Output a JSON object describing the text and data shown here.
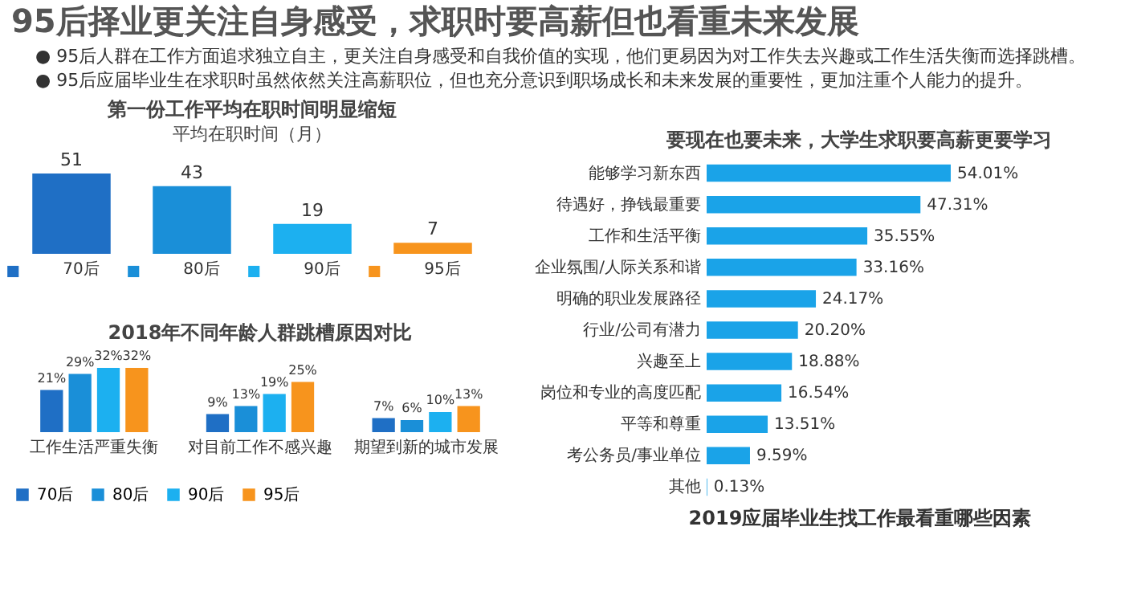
{
  "chart_data": [
    {
      "type": "other",
      "title": "95后择业更关注自身感受，求职时要高薪但也看重未来发展",
      "annotations": [
        "● 95后人群在工作方面追求独立自主，更关注自身感受和自我价值的实现，他们更易因为对工作失去兴趣或工作生活失衡而选择跳槽。",
        "● 95后应届毕业生在求职时虽然依然关注高薪职位，但也充分意识到职场成长和未来发展的重要性，更加注重个人能力的提升。"
      ]
    },
    {
      "type": "bar",
      "title": "第一份工作平均在职时间明显缩短",
      "subtitle": "平均在职时间（月）",
      "categories": [
        "70后",
        "80后",
        "90后",
        "95后"
      ],
      "values": [
        51,
        43,
        19,
        7
      ],
      "colors": [
        "#1f6fc5",
        "#1a8fd8",
        "#1cb0f0",
        "#f7941d"
      ],
      "data_labels": true,
      "tick_labels": "x"
    },
    {
      "type": "bar",
      "title": "2018年不同年龄人群跳槽原因对比",
      "categories": [
        "工作生活严重失衡",
        "对目前工作不感兴趣",
        "期望到新的城市发展"
      ],
      "legend": "bottom",
      "tick_labels": "x",
      "series": [
        {
          "name": "70后",
          "color": "#1f6fc5",
          "values": [
            21,
            9,
            7
          ],
          "value_labels": [
            "21%",
            "9%",
            "7%"
          ]
        },
        {
          "name": "80后",
          "color": "#1a8fd8",
          "values": [
            29,
            13,
            6
          ],
          "value_labels": [
            "29%",
            "13%",
            "6%"
          ]
        },
        {
          "name": "90后",
          "color": "#1cb0f0",
          "values": [
            32,
            19,
            10
          ],
          "value_labels": [
            "32%",
            "19%",
            "10%"
          ]
        },
        {
          "name": "95后",
          "color": "#f7941d",
          "values": [
            32,
            25,
            13
          ],
          "value_labels": [
            "32%",
            "25%",
            "13%"
          ]
        }
      ]
    },
    {
      "type": "bar",
      "orientation": "horizontal",
      "title": "要现在也要未来，大学生求职要高薪更要学习",
      "xlabel": "2019应届毕业生找工作最看重哪些因素",
      "tick_labels": "y",
      "color": "#1aa3e8",
      "categories": [
        "能够学习新东西",
        "待遇好，挣钱最重要",
        "工作和生活平衡",
        "企业氛围/人际关系和谐",
        "明确的职业发展路径",
        "行业/公司有潜力",
        "兴趣至上",
        "岗位和专业的高度匹配",
        "平等和尊重",
        "考公务员/事业单位",
        "其他"
      ],
      "values": [
        54.01,
        47.31,
        35.55,
        33.16,
        24.17,
        20.2,
        18.88,
        16.54,
        13.51,
        9.59,
        0.13
      ],
      "value_labels": [
        "54.01%",
        "47.31%",
        "35.55%",
        "33.16%",
        "24.17%",
        "20.20%",
        "18.88%",
        "16.54%",
        "13.51%",
        "9.59%",
        "0.13%"
      ]
    }
  ]
}
